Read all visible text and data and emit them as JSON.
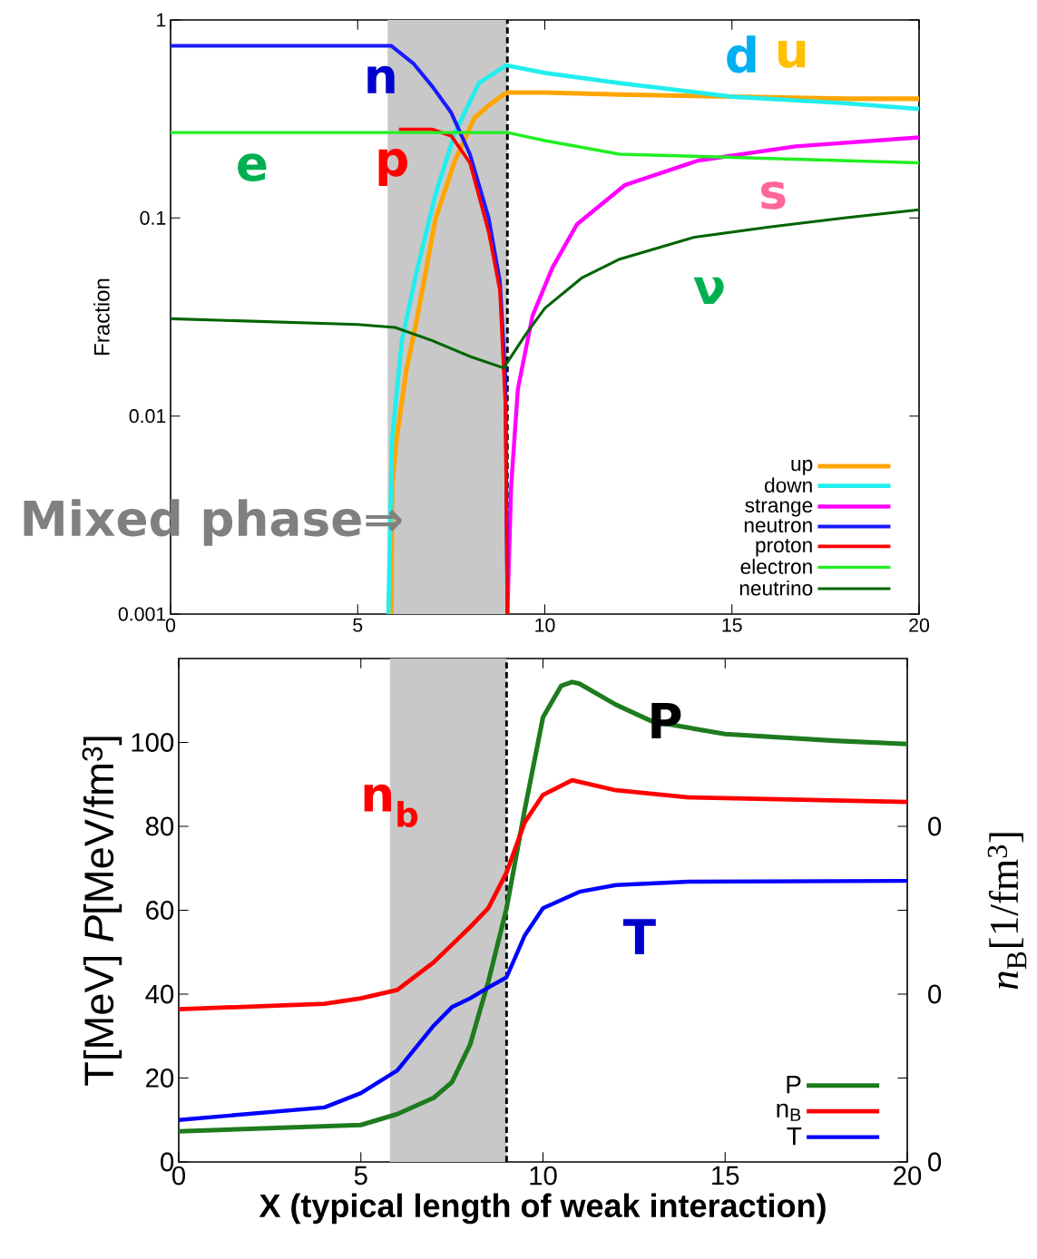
{
  "chart_data": [
    {
      "type": "line",
      "ylabel": "Fraction",
      "log": "y",
      "xlim": [
        0,
        20
      ],
      "xticks": [
        0,
        5,
        10,
        15,
        20
      ],
      "ylim": [
        0.001,
        1
      ],
      "yticks": [
        0.001,
        0.01,
        0.1,
        1
      ],
      "legend": "bottom right",
      "series": [
        {
          "name": "up",
          "color": "#ffa500",
          "x": [
            5.9,
            5.92,
            6.04,
            6.3,
            6.57,
            7.08,
            7.6,
            8.12,
            8.5,
            8.9,
            9.0,
            10,
            12,
            15,
            18,
            20
          ],
          "values": [
            0.001,
            0.0044,
            0.0077,
            0.017,
            0.03,
            0.099,
            0.195,
            0.32,
            0.37,
            0.42,
            0.43,
            0.43,
            0.42,
            0.41,
            0.4,
            0.4
          ]
        },
        {
          "name": "down",
          "color": "#22eeee",
          "x": [
            5.82,
            5.92,
            6.18,
            6.57,
            7.08,
            7.6,
            8.24,
            8.97,
            10,
            12,
            15,
            18,
            20
          ],
          "values": [
            0.001,
            0.0077,
            0.024,
            0.053,
            0.132,
            0.27,
            0.48,
            0.59,
            0.54,
            0.48,
            0.41,
            0.38,
            0.355
          ]
        },
        {
          "name": "strange",
          "color": "#ff00ff",
          "x": [
            9.0,
            9.1,
            9.28,
            9.67,
            10.2,
            10.86,
            12.15,
            14.1,
            16.7,
            20
          ],
          "values": [
            0.001,
            0.0044,
            0.0137,
            0.032,
            0.056,
            0.093,
            0.147,
            0.195,
            0.23,
            0.255
          ]
        },
        {
          "name": "neutron",
          "color": "#1a1aff",
          "x": [
            0,
            5.9,
            6.5,
            7.0,
            7.5,
            8.0,
            8.5,
            8.8,
            8.95,
            9.0
          ],
          "values": [
            0.74,
            0.74,
            0.6,
            0.46,
            0.34,
            0.21,
            0.1,
            0.048,
            0.015,
            0.001
          ]
        },
        {
          "name": "proton",
          "color": "#ff0000",
          "x": [
            6.1,
            7.0,
            7.5,
            8.0,
            8.5,
            8.8,
            8.95,
            9.0
          ],
          "values": [
            0.28,
            0.28,
            0.26,
            0.19,
            0.085,
            0.043,
            0.011,
            0.001
          ]
        },
        {
          "name": "electron",
          "color": "#22ee22",
          "x": [
            0,
            9,
            10,
            12,
            14.8,
            20
          ],
          "values": [
            0.27,
            0.27,
            0.246,
            0.21,
            0.203,
            0.19
          ]
        },
        {
          "name": "neutrino",
          "color": "#006400",
          "x": [
            0,
            5,
            6,
            7,
            8,
            8.9,
            9.5,
            10,
            11,
            12,
            14,
            16,
            18,
            20
          ],
          "values": [
            0.031,
            0.029,
            0.028,
            0.024,
            0.02,
            0.0175,
            0.026,
            0.035,
            0.05,
            0.062,
            0.08,
            0.09,
            0.1,
            0.11
          ]
        }
      ],
      "bands": [
        {
          "axis": "x",
          "from": 5.8,
          "to": 9,
          "color": "#c8c8c8"
        }
      ],
      "ref_lines": [
        {
          "axis": "x",
          "value": 9,
          "color": "#000000",
          "line_style": "dashed"
        }
      ],
      "annotations": [
        "n",
        "p",
        "e",
        "d",
        "u",
        "s",
        "ν",
        "Mixed phase⇒"
      ]
    },
    {
      "type": "line",
      "xlabel": "X (typical length  of weak interaction)",
      "ylabel": "T[MeV]   *P*[MeV/fm$^{3}$]",
      "y2label": "*n*$_{B}$[1/fm$^{3}$]",
      "xlim": [
        0,
        20
      ],
      "xticks": [
        0,
        5,
        10,
        15,
        20
      ],
      "ylim": [
        0,
        120
      ],
      "yticks": [
        0,
        20,
        40,
        60,
        80,
        100
      ],
      "legend": "bottom right",
      "series": [
        {
          "name": "P",
          "color": "#1e7b1e",
          "x": [
            0,
            5,
            6,
            7,
            7.5,
            8,
            8.5,
            9,
            9.5,
            10,
            10.5,
            10.8,
            11,
            12,
            13,
            15,
            18,
            20
          ],
          "values": [
            7.3,
            8.8,
            11.4,
            15.3,
            19,
            28,
            43,
            60.5,
            84,
            106,
            113.5,
            114.4,
            114,
            109,
            105,
            102,
            100.4,
            99.6
          ]
        },
        {
          "name": "n$_{B}$",
          "color": "#ff0000",
          "x": [
            0,
            4,
            5,
            6,
            7,
            8,
            8.5,
            9,
            9.5,
            10,
            10.8,
            12,
            14,
            20
          ],
          "values": [
            36.4,
            37.7,
            39,
            41,
            47.6,
            56,
            60.5,
            69,
            81,
            87.5,
            91,
            88.6,
            86.9,
            85.8
          ]
        },
        {
          "name": "T",
          "color": "#0000ff",
          "x": [
            0,
            4,
            5,
            6,
            7,
            7.5,
            8,
            8.5,
            9,
            9.5,
            10,
            11,
            12,
            14,
            20
          ],
          "values": [
            10,
            13,
            16.4,
            21.8,
            32.5,
            36.9,
            39,
            41.6,
            44,
            54,
            60.5,
            64.4,
            66,
            66.8,
            67
          ]
        }
      ],
      "bands": [
        {
          "axis": "x",
          "from": 5.8,
          "to": 9,
          "color": "#c8c8c8"
        }
      ],
      "ref_lines": [
        {
          "axis": "x",
          "value": 9,
          "color": "#000000",
          "line_style": "dashed"
        }
      ],
      "annotations": [
        "P",
        "n$_{b}$",
        "T",
        "0",
        "0",
        "0"
      ]
    }
  ]
}
